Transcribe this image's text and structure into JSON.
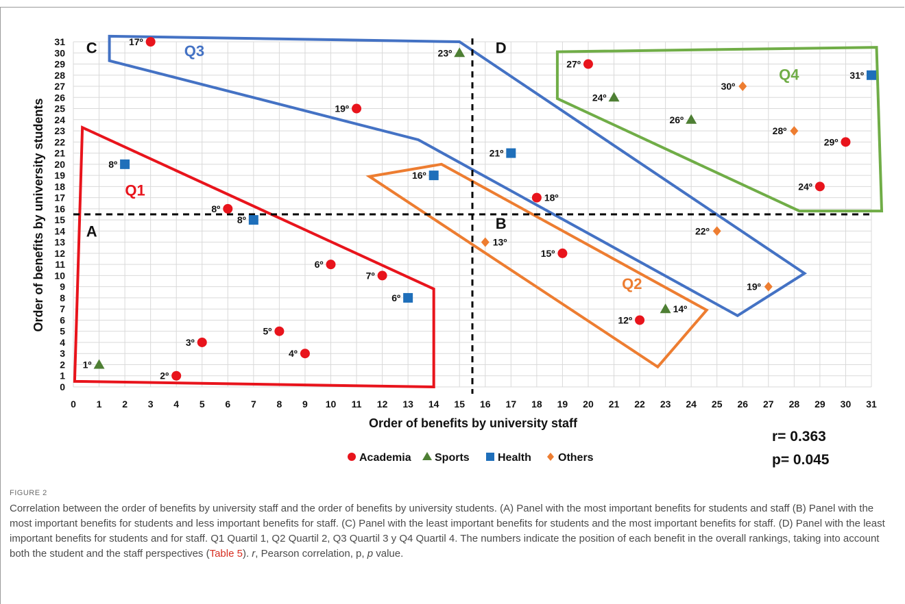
{
  "chart_data": {
    "type": "scatter",
    "xlabel": "Order of benefits by university staff",
    "ylabel": "Order of benefits by university students",
    "xlim": [
      0,
      31
    ],
    "ylim": [
      0,
      31
    ],
    "grid": true,
    "legend_position": "bottom",
    "series": [
      {
        "name": "Academia",
        "marker": "circle",
        "color": "#e8141c",
        "points": [
          {
            "x": 3,
            "y": 31,
            "label": "17º"
          },
          {
            "x": 11,
            "y": 25,
            "label": "19º"
          },
          {
            "x": 20,
            "y": 29,
            "label": "27º"
          },
          {
            "x": 30,
            "y": 22,
            "label": "29º"
          },
          {
            "x": 29,
            "y": 18,
            "label": "24º"
          },
          {
            "x": 18,
            "y": 17,
            "label": "18º"
          },
          {
            "x": 6,
            "y": 16,
            "label": "8º"
          },
          {
            "x": 19,
            "y": 12,
            "label": "15º"
          },
          {
            "x": 10,
            "y": 11,
            "label": "6º"
          },
          {
            "x": 12,
            "y": 10,
            "label": "7º"
          },
          {
            "x": 22,
            "y": 6,
            "label": "12º"
          },
          {
            "x": 8,
            "y": 5,
            "label": "5º"
          },
          {
            "x": 5,
            "y": 4,
            "label": "3º"
          },
          {
            "x": 9,
            "y": 3,
            "label": "4º"
          },
          {
            "x": 4,
            "y": 1,
            "label": "2º"
          }
        ]
      },
      {
        "name": "Sports",
        "marker": "triangle",
        "color": "#4e7f34",
        "points": [
          {
            "x": 15,
            "y": 30,
            "label": "23º"
          },
          {
            "x": 21,
            "y": 26,
            "label": "24º"
          },
          {
            "x": 24,
            "y": 24,
            "label": "26º"
          },
          {
            "x": 23,
            "y": 7,
            "label": "14º"
          },
          {
            "x": 1,
            "y": 2,
            "label": "1º"
          }
        ]
      },
      {
        "name": "Health",
        "marker": "square",
        "color": "#1f6fba",
        "points": [
          {
            "x": 31,
            "y": 28,
            "label": "31º"
          },
          {
            "x": 17,
            "y": 21,
            "label": "21º"
          },
          {
            "x": 2,
            "y": 20,
            "label": "8º"
          },
          {
            "x": 14,
            "y": 19,
            "label": "16º"
          },
          {
            "x": 7,
            "y": 15,
            "label": "8º"
          },
          {
            "x": 13,
            "y": 8,
            "label": "6º"
          }
        ]
      },
      {
        "name": "Others",
        "marker": "diamond",
        "color": "#ed7d31",
        "points": [
          {
            "x": 26,
            "y": 27,
            "label": "30º"
          },
          {
            "x": 28,
            "y": 23,
            "label": "28º"
          },
          {
            "x": 25,
            "y": 14,
            "label": "22º"
          },
          {
            "x": 16,
            "y": 13,
            "label": "13º"
          },
          {
            "x": 27,
            "y": 9,
            "label": "19º"
          }
        ]
      }
    ],
    "reference_lines": {
      "vertical_x": 15.5,
      "horizontal_y": 15.5
    },
    "panels": [
      {
        "label": "A",
        "x": 0.5,
        "y": 13.5
      },
      {
        "label": "B",
        "x": 16.4,
        "y": 14.2
      },
      {
        "label": "C",
        "x": 0.5,
        "y": 30
      },
      {
        "label": "D",
        "x": 16.4,
        "y": 30
      }
    ],
    "regions": [
      {
        "label": "Q1",
        "color": "#e8141c",
        "label_at": [
          2.4,
          17.2
        ],
        "polygon": [
          [
            0.35,
            23.3
          ],
          [
            14,
            8.8
          ],
          [
            14,
            0
          ],
          [
            0.05,
            0.5
          ]
        ]
      },
      {
        "label": "Q2",
        "color": "#ed7d31",
        "label_at": [
          21.7,
          8.8
        ],
        "polygon": [
          [
            11.5,
            18.9
          ],
          [
            14.3,
            20
          ],
          [
            24.6,
            6.9
          ],
          [
            22.7,
            1.8
          ]
        ]
      },
      {
        "label": "Q3",
        "color": "#4472c4",
        "label_at": [
          4.7,
          29.7
        ],
        "polygon": [
          [
            1.4,
            31.5
          ],
          [
            15,
            31
          ],
          [
            28.4,
            10.2
          ],
          [
            25.8,
            6.4
          ],
          [
            13.4,
            22.2
          ],
          [
            1.4,
            29.3
          ]
        ]
      },
      {
        "label": "Q4",
        "color": "#70ad47",
        "label_at": [
          27.8,
          27.6
        ],
        "polygon": [
          [
            18.8,
            30.1
          ],
          [
            31.2,
            30.5
          ],
          [
            31.4,
            15.8
          ],
          [
            28.2,
            15.8
          ],
          [
            18.8,
            25.9
          ]
        ]
      }
    ]
  },
  "stats": {
    "r": "r= 0.363",
    "p": "p= 0.045"
  },
  "caption": {
    "figure_label": "FIGURE 2",
    "text_a": "Correlation between the order of benefits by university staff and the order of benefits by university students. (",
    "a": "A",
    "text_b": ") Panel with the most important benefits for students and staff (",
    "b": "B",
    "text_c": ") Panel with the most important benefits for students and less important benefits for staff. (",
    "c": "C",
    "text_d": ") Panel with the least important benefits for students and the most important benefits for staff. (",
    "d": "D",
    "text_e": ") Panel with the least important benefits for students and for staff. Q1 Quartil 1, Q2 Quartil 2, Q3 Quartil 3 y Q4 Quartil 4. The numbers indicate the position of each benefit in the overall rankings, taking into account both the student and the staff perspectives (",
    "table_link": "Table 5",
    "text_f": "). ",
    "r_italic": "r",
    "text_g": ", Pearson correlation, p, ",
    "p_italic": "p",
    "text_h": " value."
  }
}
